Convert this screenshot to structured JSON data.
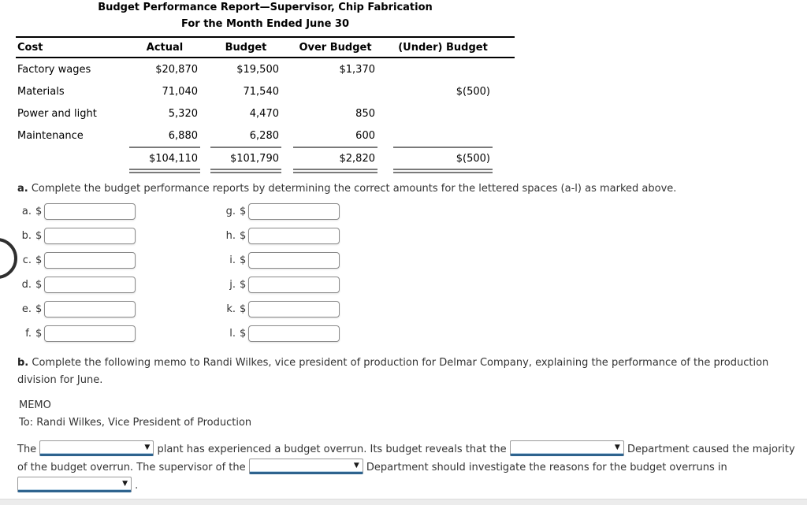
{
  "report": {
    "title_line1": "Budget Performance Report—Supervisor, Chip Fabrication",
    "title_line2": "For the Month Ended June 30",
    "columns": {
      "cost": "Cost",
      "actual": "Actual",
      "budget": "Budget",
      "over": "Over Budget",
      "under": "(Under) Budget"
    },
    "rows": [
      {
        "cost": "Factory wages",
        "actual": "$20,870",
        "budget": "$19,500",
        "over": "$1,370",
        "under": ""
      },
      {
        "cost": "Materials",
        "actual": "71,040",
        "budget": "71,540",
        "over": "",
        "under": "$(500)"
      },
      {
        "cost": "Power and light",
        "actual": "5,320",
        "budget": "4,470",
        "over": "850",
        "under": ""
      },
      {
        "cost": "Maintenance",
        "actual": "6,880",
        "budget": "6,280",
        "over": "600",
        "under": ""
      }
    ],
    "totals": {
      "actual": "$104,110",
      "budget": "$101,790",
      "over": "$2,820",
      "under": "$(500)"
    }
  },
  "instructions": {
    "a_label": "a.",
    "a_text": "Complete the budget performance reports by determining the correct amounts for the lettered spaces (a-l) as marked above.",
    "b_label": "b.",
    "b_text": "Complete the following memo to Randi Wilkes, vice president of production for Delmar Company, explaining the performance of the production division for June."
  },
  "answers": {
    "currency": "$",
    "left": [
      "a.",
      "b.",
      "c.",
      "d.",
      "e.",
      "f."
    ],
    "right": [
      "g.",
      "h.",
      "i.",
      "j.",
      "k.",
      "l."
    ]
  },
  "memo": {
    "heading": "MEMO",
    "to_line": "To: Randi Wilkes, Vice President of Production",
    "part1": "The",
    "part2": "plant has experienced a budget overrun. Its budget reveals that the",
    "part3": "Department caused the majority of the budget overrun. The supervisor of the",
    "part4": "Department should investigate the reasons for the budget overruns in",
    "part5": "."
  },
  "icons": {
    "dropdown_arrow": "▼"
  },
  "colors": {
    "select_underline": "#2e638e",
    "rule_gray": "#7a7a7a",
    "accent_text": "#333333"
  }
}
